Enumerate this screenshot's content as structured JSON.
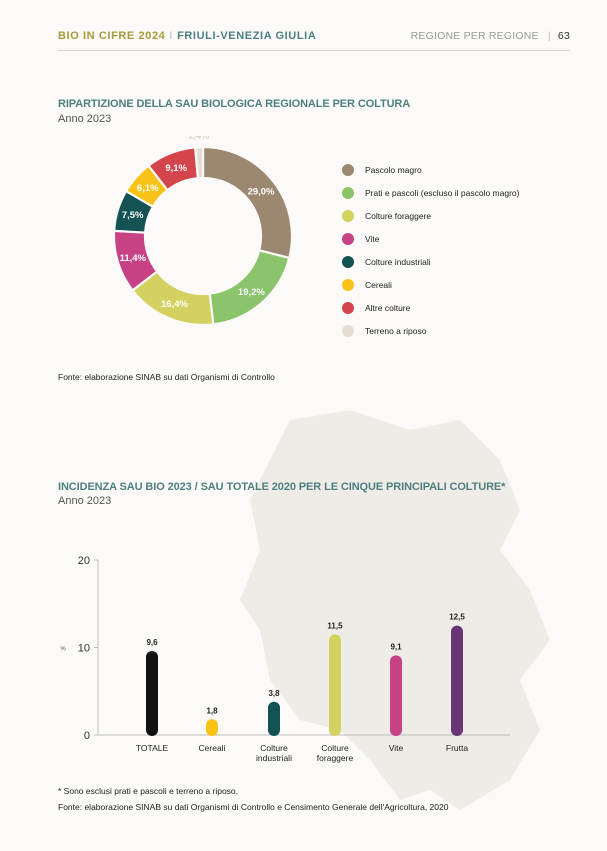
{
  "header": {
    "left_a": "BIO IN CIFRE 2024",
    "sep": "I",
    "left_b": "FRIULI-VENEZIA GIULIA",
    "right": "REGIONE PER REGIONE",
    "right_sep": "|",
    "page": "63"
  },
  "section1": {
    "title": "RIPARTIZIONE DELLA SAU BIOLOGICA REGIONALE PER COLTURA",
    "subtitle": "Anno 2023",
    "source": "Fonte: elaborazione SINAB su dati Organismi di Controllo"
  },
  "section2": {
    "title": "INCIDENZA SAU BIO 2023 / SAU TOTALE 2020 PER LE CINQUE PRINCIPALI COLTURE*",
    "subtitle": "Anno 2023",
    "note": "* Sono esclusi prati e pascoli e terreno a riposo.",
    "source": "Fonte: elaborazione SINAB su dati Organismi di Controllo e Censimento Generale dell'Agricoltura, 2020"
  },
  "chart_data": [
    {
      "type": "pie",
      "title": "RIPARTIZIONE DELLA SAU BIOLOGICA REGIONALE PER COLTURA",
      "legend_position": "right",
      "slices": [
        {
          "name": "Pascolo magro",
          "value": 29.0,
          "label": "29,0%",
          "color": "#9c8870"
        },
        {
          "name": "Prati e pascoli (escluso il pascolo magro)",
          "value": 19.2,
          "label": "19,2%",
          "color": "#8bc46a"
        },
        {
          "name": "Colture foraggere",
          "value": 16.4,
          "label": "16,4%",
          "color": "#d3d160"
        },
        {
          "name": "Vite",
          "value": 11.4,
          "label": "11,4%",
          "color": "#c64285"
        },
        {
          "name": "Colture industriali",
          "value": 7.5,
          "label": "7,5%",
          "color": "#145253"
        },
        {
          "name": "Cereali",
          "value": 6.1,
          "label": "6,1%",
          "color": "#f8c316"
        },
        {
          "name": "Altre colture",
          "value": 9.1,
          "label": "9,1%",
          "color": "#d3444b"
        },
        {
          "name": "Terreno a riposo",
          "value": 1.4,
          "label": "1,4%",
          "color": "#e6ddd3"
        }
      ]
    },
    {
      "type": "bar",
      "title": "INCIDENZA SAU BIO 2023 / SAU TOTALE 2020 PER LE CINQUE PRINCIPALI COLTURE*",
      "ylabel": "%",
      "ylim": [
        0,
        20
      ],
      "yticks": [
        "0",
        "10",
        "20"
      ],
      "grid": false,
      "categories": [
        "TOTALE",
        "Cereali",
        "Colture industriali",
        "Colture foraggere",
        "Vite",
        "Frutta"
      ],
      "category_lines": [
        [
          "TOTALE"
        ],
        [
          "Cereali"
        ],
        [
          "Colture",
          "industriali"
        ],
        [
          "Colture",
          "foraggere"
        ],
        [
          "Vite"
        ],
        [
          "Frutta"
        ]
      ],
      "values": [
        9.6,
        1.8,
        3.8,
        11.5,
        9.1,
        12.5
      ],
      "value_labels": [
        "9,6",
        "1,8",
        "3,8",
        "11,5",
        "9,1",
        "12,5"
      ],
      "colors": [
        "#111111",
        "#f8c316",
        "#145253",
        "#d3d160",
        "#c64285",
        "#6a3574"
      ]
    }
  ]
}
